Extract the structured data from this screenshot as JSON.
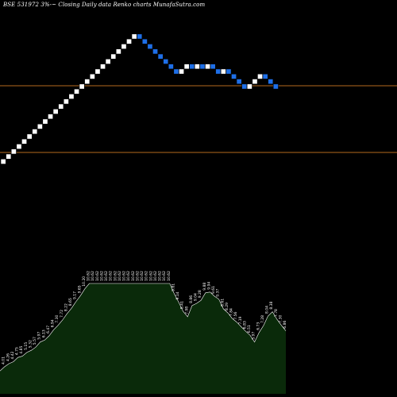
{
  "header": {
    "title": "BSE 531972  3%-~  Closing Daily data  Renko  charts MunafaSutra.com"
  },
  "colors": {
    "background": "#000000",
    "up_brick": "#ffffff",
    "down_brick": "#1e6fe8",
    "level_line": "#b36a1e",
    "volume_fill": "#0a2a0a",
    "volume_edge": "#ffffff",
    "label": "#ffffff"
  },
  "chart_data": [
    {
      "type": "renko",
      "brick_size_pct": 3,
      "bricks": [
        "up",
        "up",
        "up",
        "up",
        "up",
        "up",
        "up",
        "up",
        "up",
        "up",
        "up",
        "up",
        "up",
        "up",
        "up",
        "up",
        "up",
        "up",
        "up",
        "up",
        "up",
        "up",
        "up",
        "up",
        "up",
        "up",
        "down",
        "down",
        "down",
        "down",
        "down",
        "down",
        "down",
        "down",
        "up",
        "up",
        "down",
        "up",
        "down",
        "up",
        "down",
        "down",
        "up",
        "down",
        "down",
        "down",
        "down",
        "up",
        "up",
        "up",
        "down",
        "down",
        "down"
      ],
      "reference_lines": 2
    },
    {
      "type": "area",
      "values": [
        3.68,
        4.01,
        4.26,
        4.42,
        4.75,
        4.85,
        5.15,
        5.32,
        5.57,
        5.97,
        6.13,
        6.47,
        6.94,
        7.3,
        7.72,
        8.22,
        8.65,
        9.17,
        9.65,
        10.2,
        10.62,
        10.62,
        10.62,
        10.62,
        10.62,
        10.62,
        10.62,
        10.62,
        10.62,
        10.62,
        10.62,
        10.62,
        10.62,
        10.62,
        10.62,
        10.62,
        10.62,
        10.62,
        10.62,
        9.81,
        9.14,
        8.41,
        7.98,
        8.86,
        9.04,
        9.28,
        9.88,
        9.94,
        9.61,
        9.37,
        8.61,
        8.29,
        7.84,
        7.56,
        7.19,
        6.83,
        6.51,
        5.97,
        6.73,
        7.28,
        8.04,
        8.38,
        7.78,
        7.3,
        6.86
      ]
    }
  ]
}
